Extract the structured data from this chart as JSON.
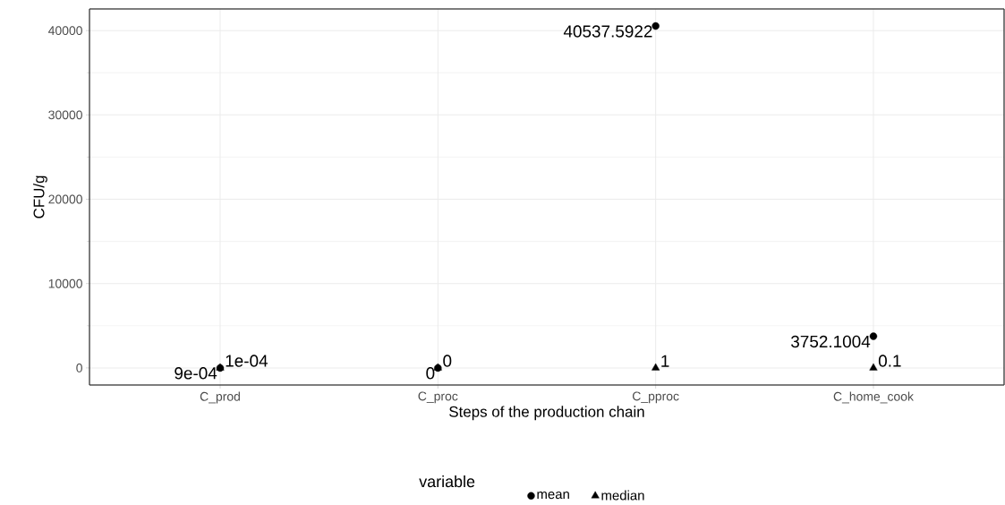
{
  "chart_data": {
    "type": "scatter",
    "xlabel": "Steps of the production chain",
    "ylabel": "CFU/g",
    "legend_title": "variable",
    "categories": [
      "C_prod",
      "C_proc",
      "C_pproc",
      "C_home_cook"
    ],
    "series": [
      {
        "name": "mean",
        "color": "#000000",
        "marker": "circle",
        "values": [
          0.0009,
          0,
          40537.5922,
          3752.1004
        ],
        "value_labels": [
          "9e-04",
          "0",
          "40537.5922",
          "3752.1004"
        ]
      },
      {
        "name": "median",
        "color": "#000000",
        "marker": "triangle",
        "values": [
          0.0001,
          0,
          1,
          0.1
        ],
        "value_labels": [
          "1e-04",
          "0",
          "1",
          "0.1"
        ]
      }
    ],
    "ylim": [
      -2027,
      42564
    ],
    "yticks": [
      0,
      10000,
      20000,
      30000,
      40000
    ],
    "grid": true,
    "legend": "bottom"
  }
}
